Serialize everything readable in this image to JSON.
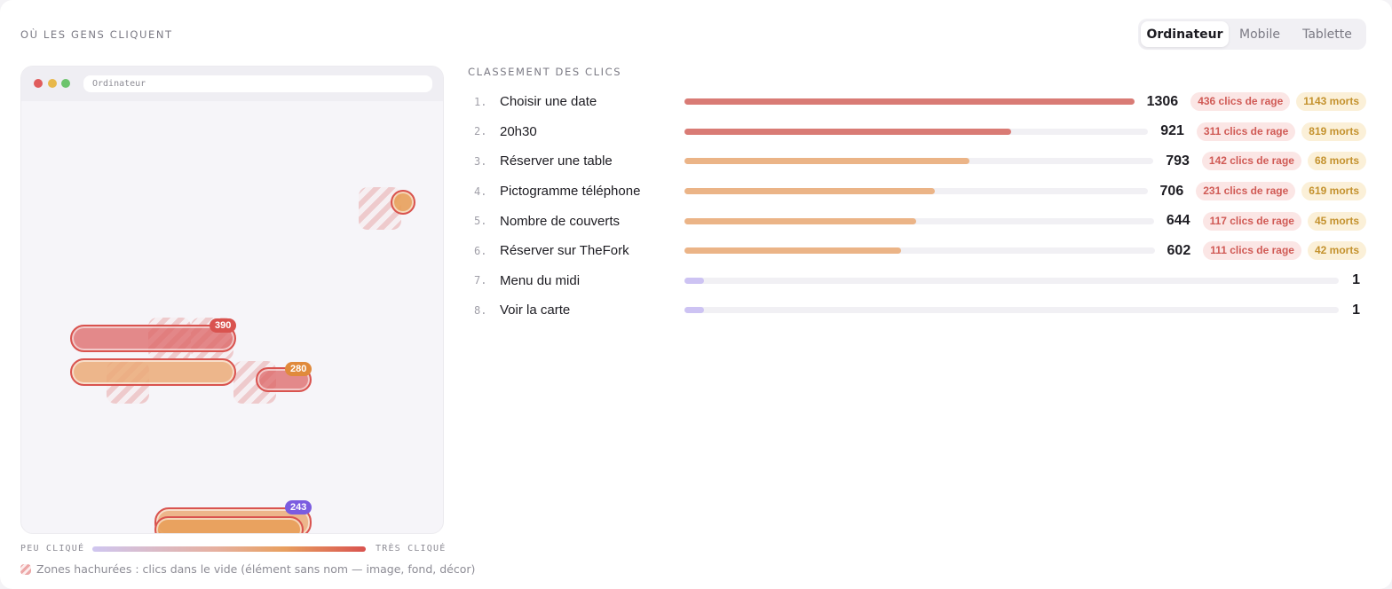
{
  "header": {
    "title": "OÙ LES GENS CLIQUENT"
  },
  "tabs": [
    {
      "label": "Ordinateur",
      "active": true
    },
    {
      "label": "Mobile",
      "active": false
    },
    {
      "label": "Tablette",
      "active": false
    }
  ],
  "browser": {
    "url": "Ordinateur",
    "badges": [
      "390",
      "280",
      "243"
    ]
  },
  "legend": {
    "low": "PEU CLIQUÉ",
    "high": "TRÈS CLIQUÉ",
    "hatch_note": "Zones hachurées : clics dans le vide (élément sans nom — image, fond, décor)"
  },
  "ranking": {
    "title": "CLASSEMENT DES CLICS",
    "max": 1306,
    "rows": [
      {
        "rank": "1.",
        "label": "Choisir une date",
        "count": 1306,
        "rage": "436 clics de rage",
        "dead": "1143 morts",
        "color": "#d97b75"
      },
      {
        "rank": "2.",
        "label": "20h30",
        "count": 921,
        "rage": "311 clics de rage",
        "dead": "819 morts",
        "color": "#d97b75"
      },
      {
        "rank": "3.",
        "label": "Réserver une table",
        "count": 793,
        "rage": "142 clics de rage",
        "dead": "68 morts",
        "color": "#ebb487"
      },
      {
        "rank": "4.",
        "label": "Pictogramme téléphone",
        "count": 706,
        "rage": "231 clics de rage",
        "dead": "619 morts",
        "color": "#ebb487"
      },
      {
        "rank": "5.",
        "label": "Nombre de couverts",
        "count": 644,
        "rage": "117 clics de rage",
        "dead": "45 morts",
        "color": "#ebb487"
      },
      {
        "rank": "6.",
        "label": "Réserver sur TheFork",
        "count": 602,
        "rage": "111 clics de rage",
        "dead": "42 morts",
        "color": "#ebb487"
      },
      {
        "rank": "7.",
        "label": "Menu du midi",
        "count": 1,
        "rage": "",
        "dead": "",
        "color": "#cdc3f3"
      },
      {
        "rank": "8.",
        "label": "Voir la carte",
        "count": 1,
        "rage": "",
        "dead": "",
        "color": "#cdc3f3"
      }
    ]
  }
}
